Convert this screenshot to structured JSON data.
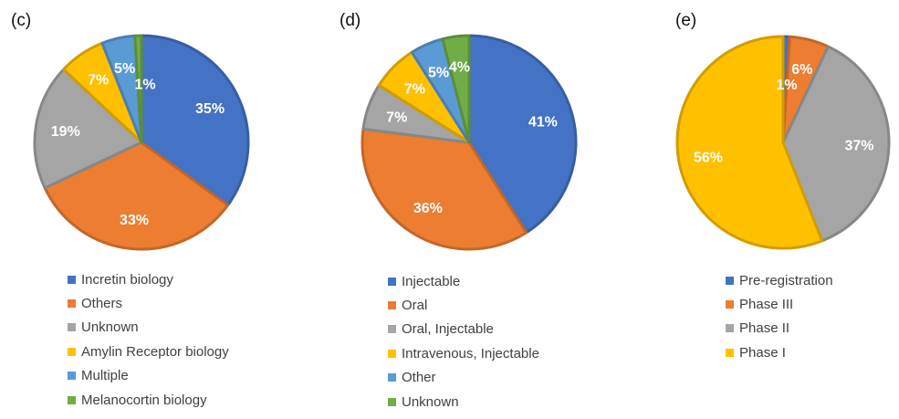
{
  "chart_data": [
    {
      "type": "pie",
      "panel_label": "(c)",
      "categories": [
        "Incretin biology",
        "Others",
        "Unknown",
        "Amylin Receptor biology",
        "Multiple",
        "Melanocortin biology"
      ],
      "values": [
        35,
        33,
        19,
        7,
        5,
        1
      ],
      "labels": [
        "35%",
        "33%",
        "19%",
        "7%",
        "5%",
        "1%"
      ],
      "colors": [
        "#4472C4",
        "#ED7D31",
        "#A5A5A5",
        "#FFC000",
        "#5B9BD5",
        "#70AD47"
      ],
      "legend": "bottom"
    },
    {
      "type": "pie",
      "panel_label": "(d)",
      "categories": [
        "Injectable",
        "Oral",
        "Oral, Injectable",
        "Intravenous, Injectable",
        "Other",
        "Unknown"
      ],
      "values": [
        41,
        36,
        7,
        7,
        5,
        4
      ],
      "labels": [
        "41%",
        "36%",
        "7%",
        "7%",
        "5%",
        "4%"
      ],
      "colors": [
        "#4472C4",
        "#ED7D31",
        "#A5A5A5",
        "#FFC000",
        "#5B9BD5",
        "#70AD47"
      ],
      "legend": "bottom"
    },
    {
      "type": "pie",
      "panel_label": "(e)",
      "categories": [
        "Pre-registration",
        "Phase III",
        "Phase II",
        "Phase I"
      ],
      "values": [
        1,
        6,
        37,
        56
      ],
      "labels": [
        "1%",
        "6%",
        "37%",
        "56%"
      ],
      "colors": [
        "#4472C4",
        "#ED7D31",
        "#A5A5A5",
        "#FFC000"
      ],
      "legend": "bottom"
    }
  ]
}
